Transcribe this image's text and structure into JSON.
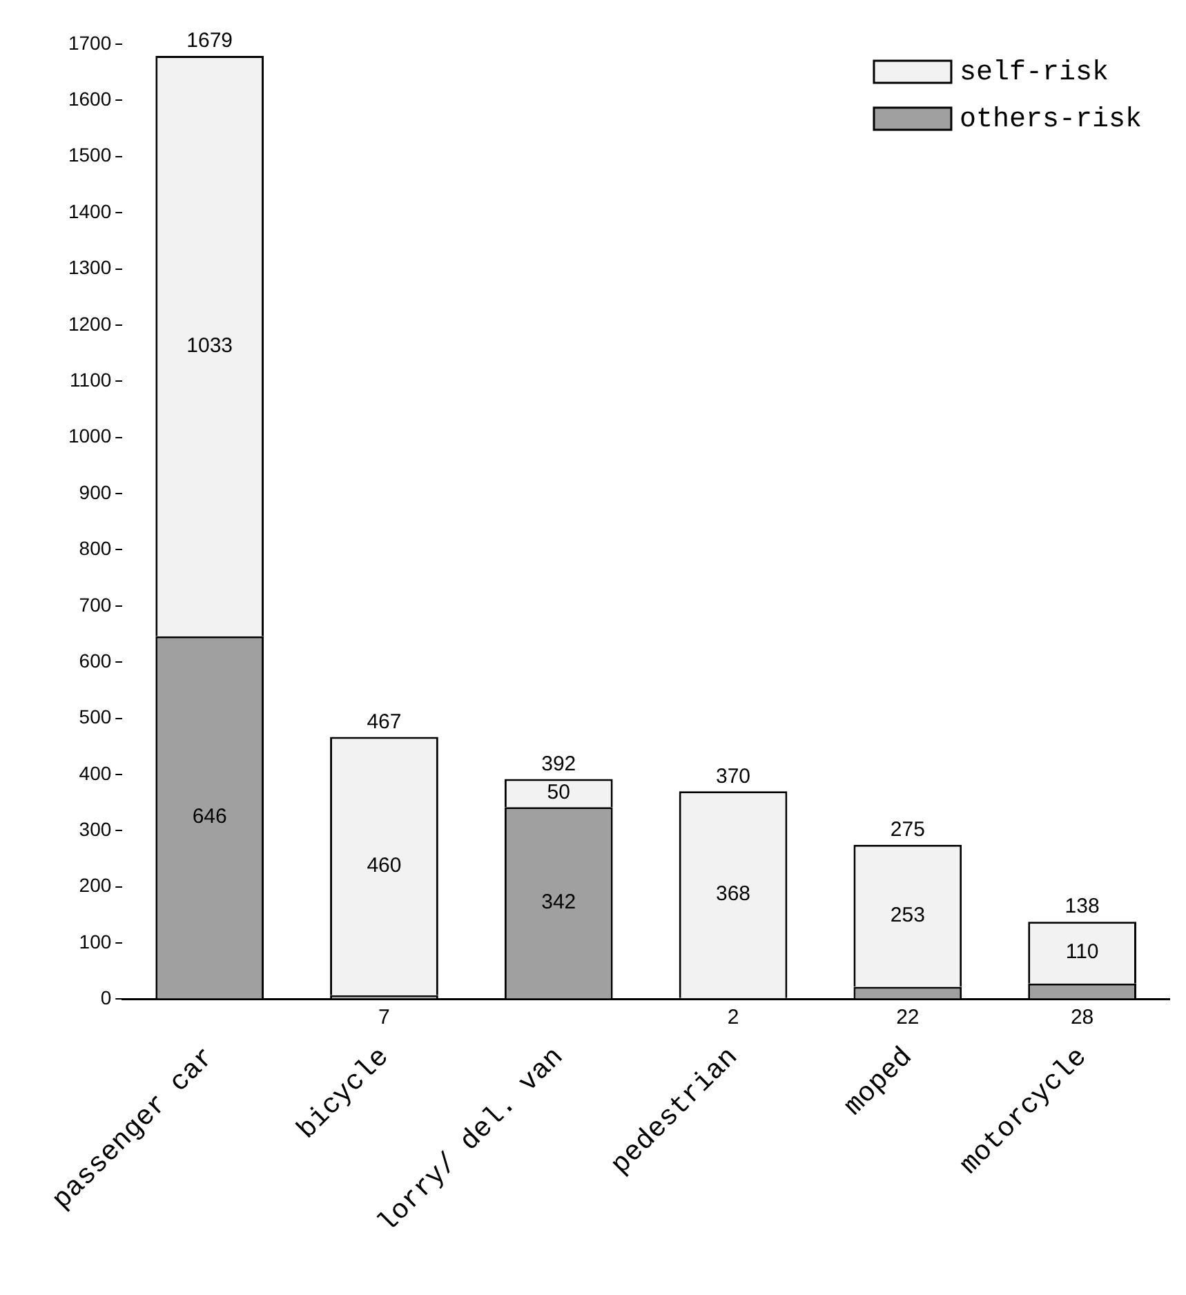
{
  "chart_data": {
    "type": "bar",
    "stacked": true,
    "categories": [
      "passenger car",
      "bicycle",
      "lorry/ del. van",
      "pedestrian",
      "moped",
      "motorcycle"
    ],
    "series": [
      {
        "name": "others-risk",
        "color": "#a0a0a0",
        "values": [
          646,
          7,
          342,
          2,
          22,
          28
        ]
      },
      {
        "name": "self-risk",
        "color": "#f2f2f2",
        "values": [
          1033,
          460,
          50,
          368,
          253,
          110
        ]
      }
    ],
    "totals": [
      "1679",
      "467",
      "392",
      "370",
      "275",
      "138"
    ],
    "data_labels": true,
    "ylim": [
      0,
      1700
    ],
    "yticks": [
      0,
      100,
      200,
      300,
      400,
      500,
      600,
      700,
      800,
      900,
      1000,
      1100,
      1200,
      1300,
      1400,
      1500,
      1600,
      1700
    ],
    "grid": false,
    "legend": "top right"
  }
}
